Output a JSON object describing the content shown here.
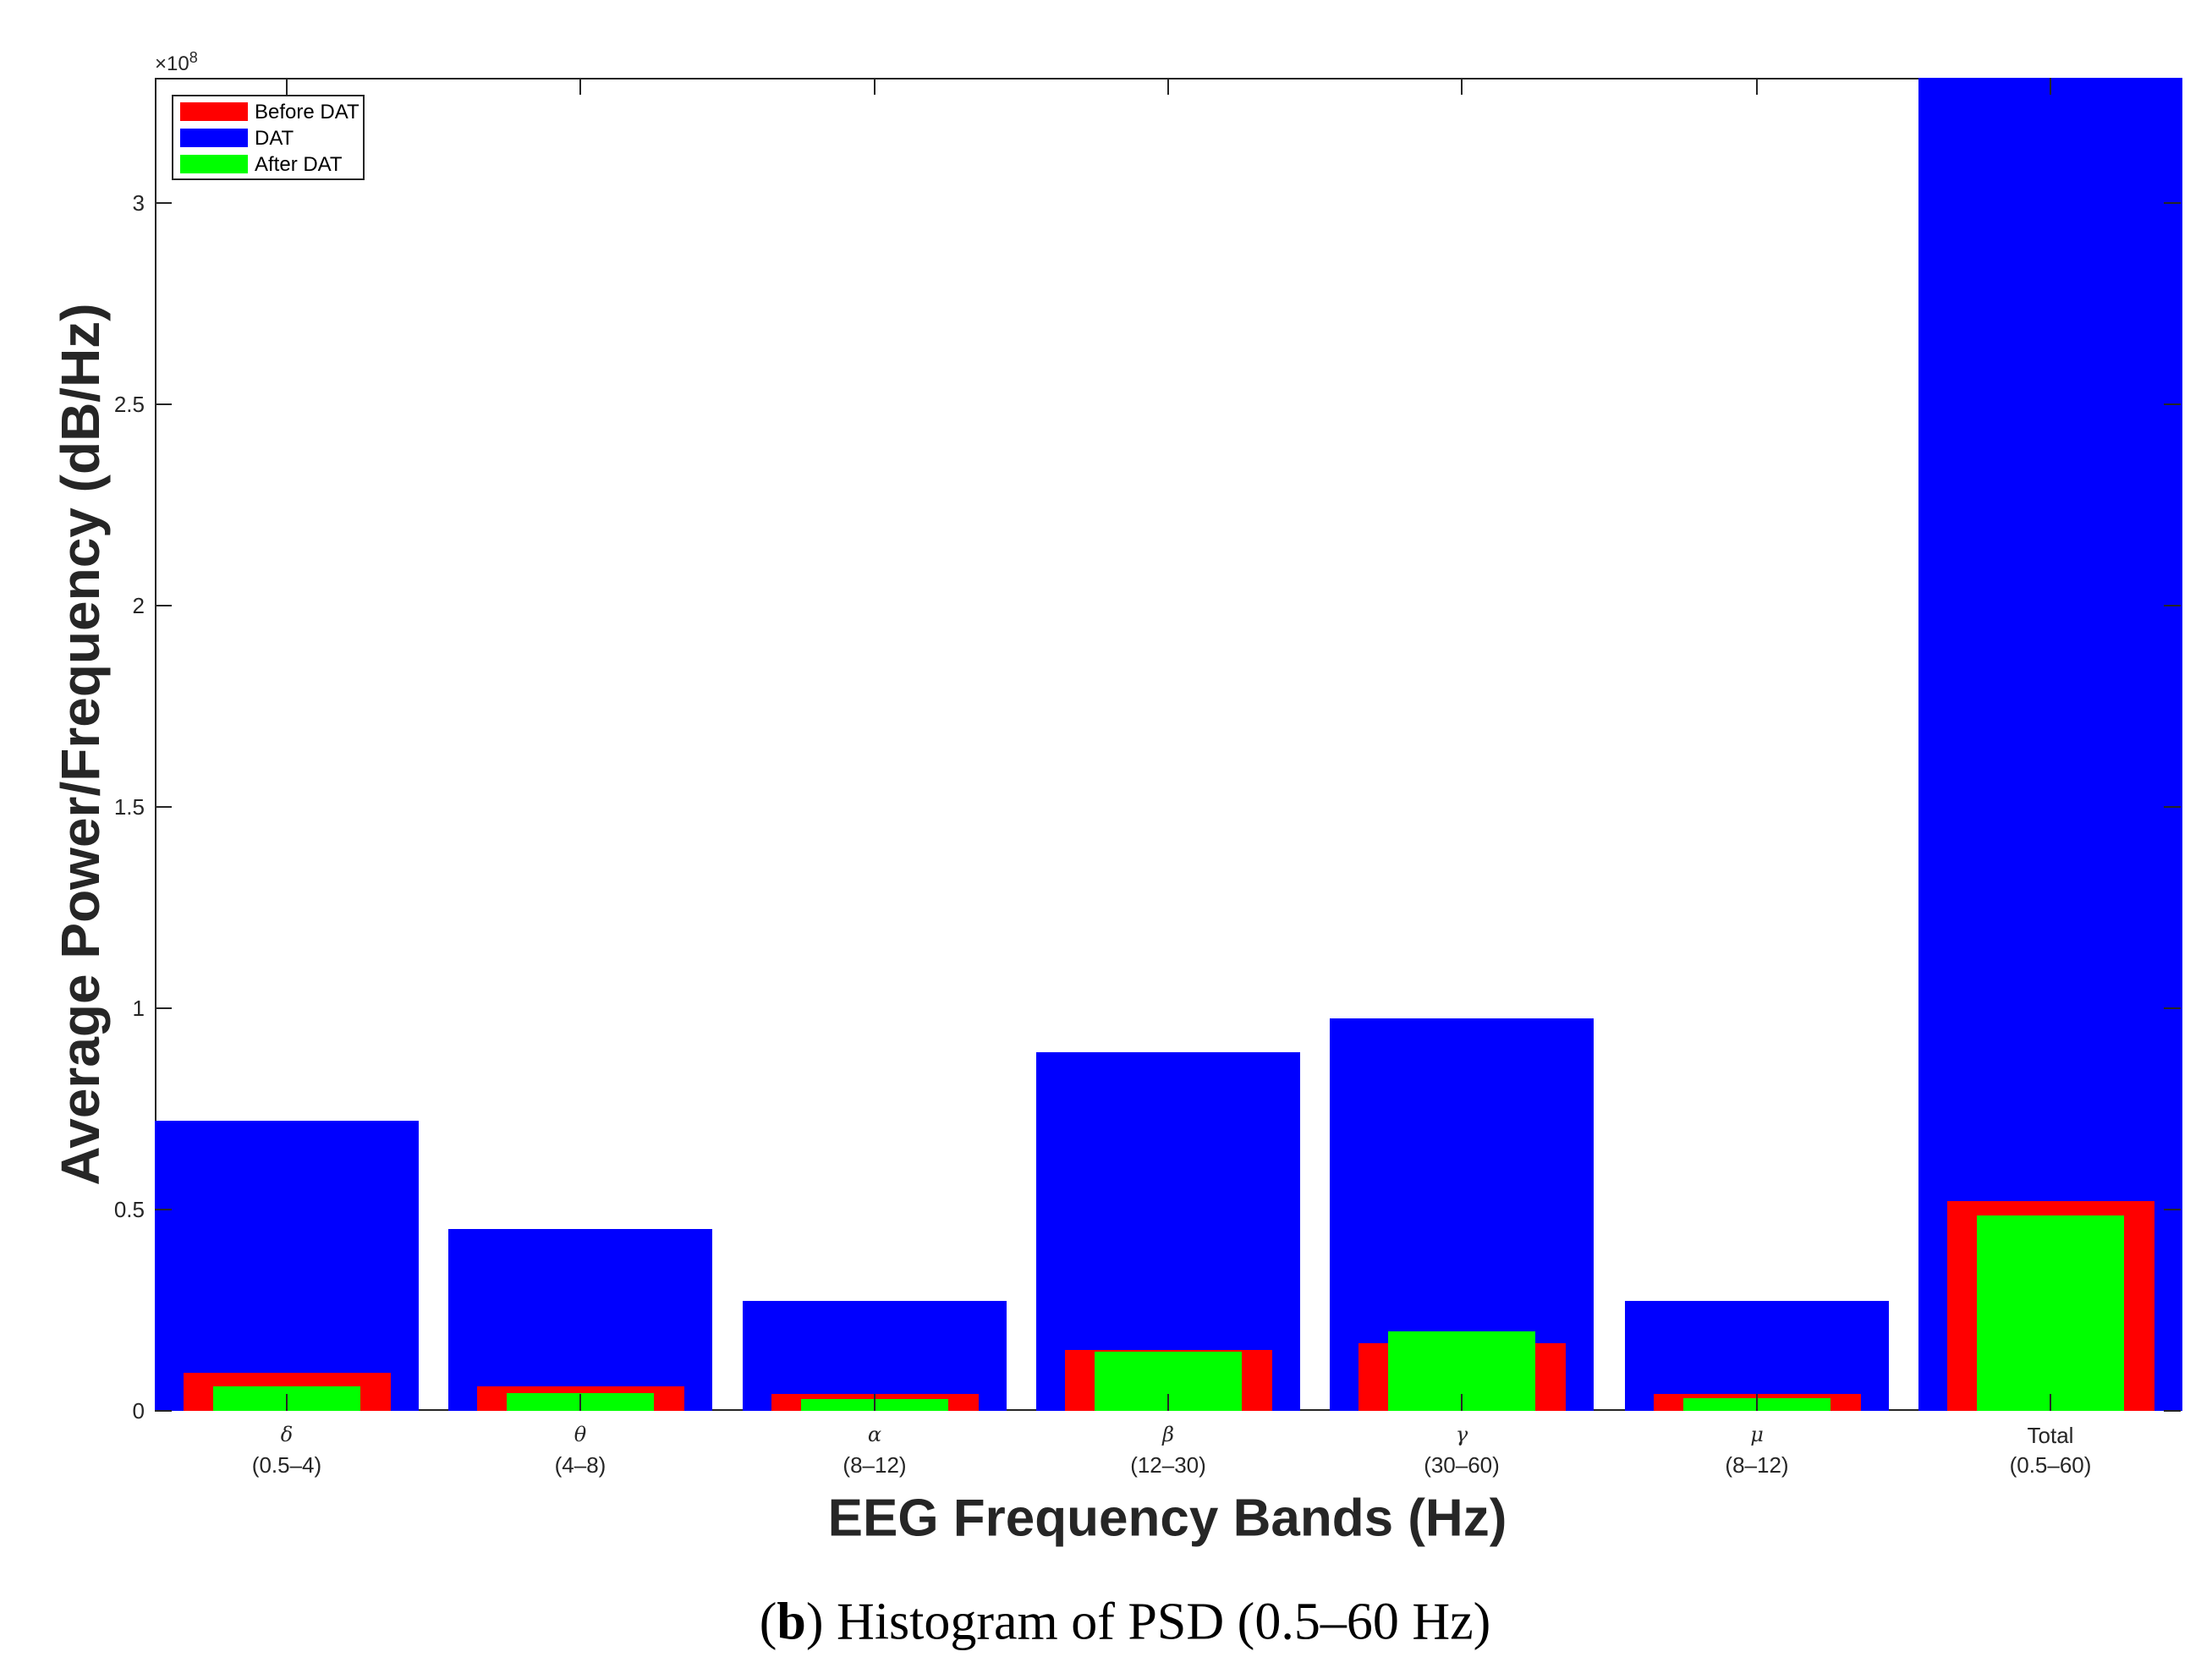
{
  "chart_data": {
    "type": "bar",
    "title": "",
    "caption_letter": "b",
    "caption_text": "Histogram of PSD (0.5–60 Hz)",
    "xlabel": "EEG Frequency Bands (Hz)",
    "ylabel": "Average Power/Frequency (dB/Hz)",
    "y_exponent": "×10",
    "y_exponent_power": "8",
    "ylim": [
      0,
      3.31
    ],
    "yticks": [
      0,
      0.5,
      1,
      1.5,
      2,
      2.5,
      3
    ],
    "ytick_labels": [
      "0",
      "0.5",
      "1",
      "1.5",
      "2",
      "2.5",
      "3"
    ],
    "grid": false,
    "legend_position": "upper-left",
    "categories": [
      {
        "symbol": "δ",
        "range": "(0.5–4)"
      },
      {
        "symbol": "θ",
        "range": "(4–8)"
      },
      {
        "symbol": "α",
        "range": "(8–12)"
      },
      {
        "symbol": "β",
        "range": "(12–30)"
      },
      {
        "symbol": "γ",
        "range": "(30–60)"
      },
      {
        "symbol": "μ",
        "range": "(8–12)"
      },
      {
        "symbol": "Total",
        "range": "(0.5–60)"
      }
    ],
    "series": [
      {
        "name": "Before DAT",
        "color": "#ff0000",
        "values": [
          0.095,
          0.061,
          0.041,
          0.152,
          0.169,
          0.042,
          0.52
        ]
      },
      {
        "name": "DAT",
        "color": "#0000ff",
        "values": [
          0.72,
          0.451,
          0.272,
          0.89,
          0.975,
          0.273,
          3.31
        ]
      },
      {
        "name": "After DAT",
        "color": "#00ff00",
        "values": [
          0.061,
          0.044,
          0.03,
          0.147,
          0.198,
          0.031,
          0.485
        ]
      }
    ],
    "unit_note": "values in units of 10^8"
  }
}
